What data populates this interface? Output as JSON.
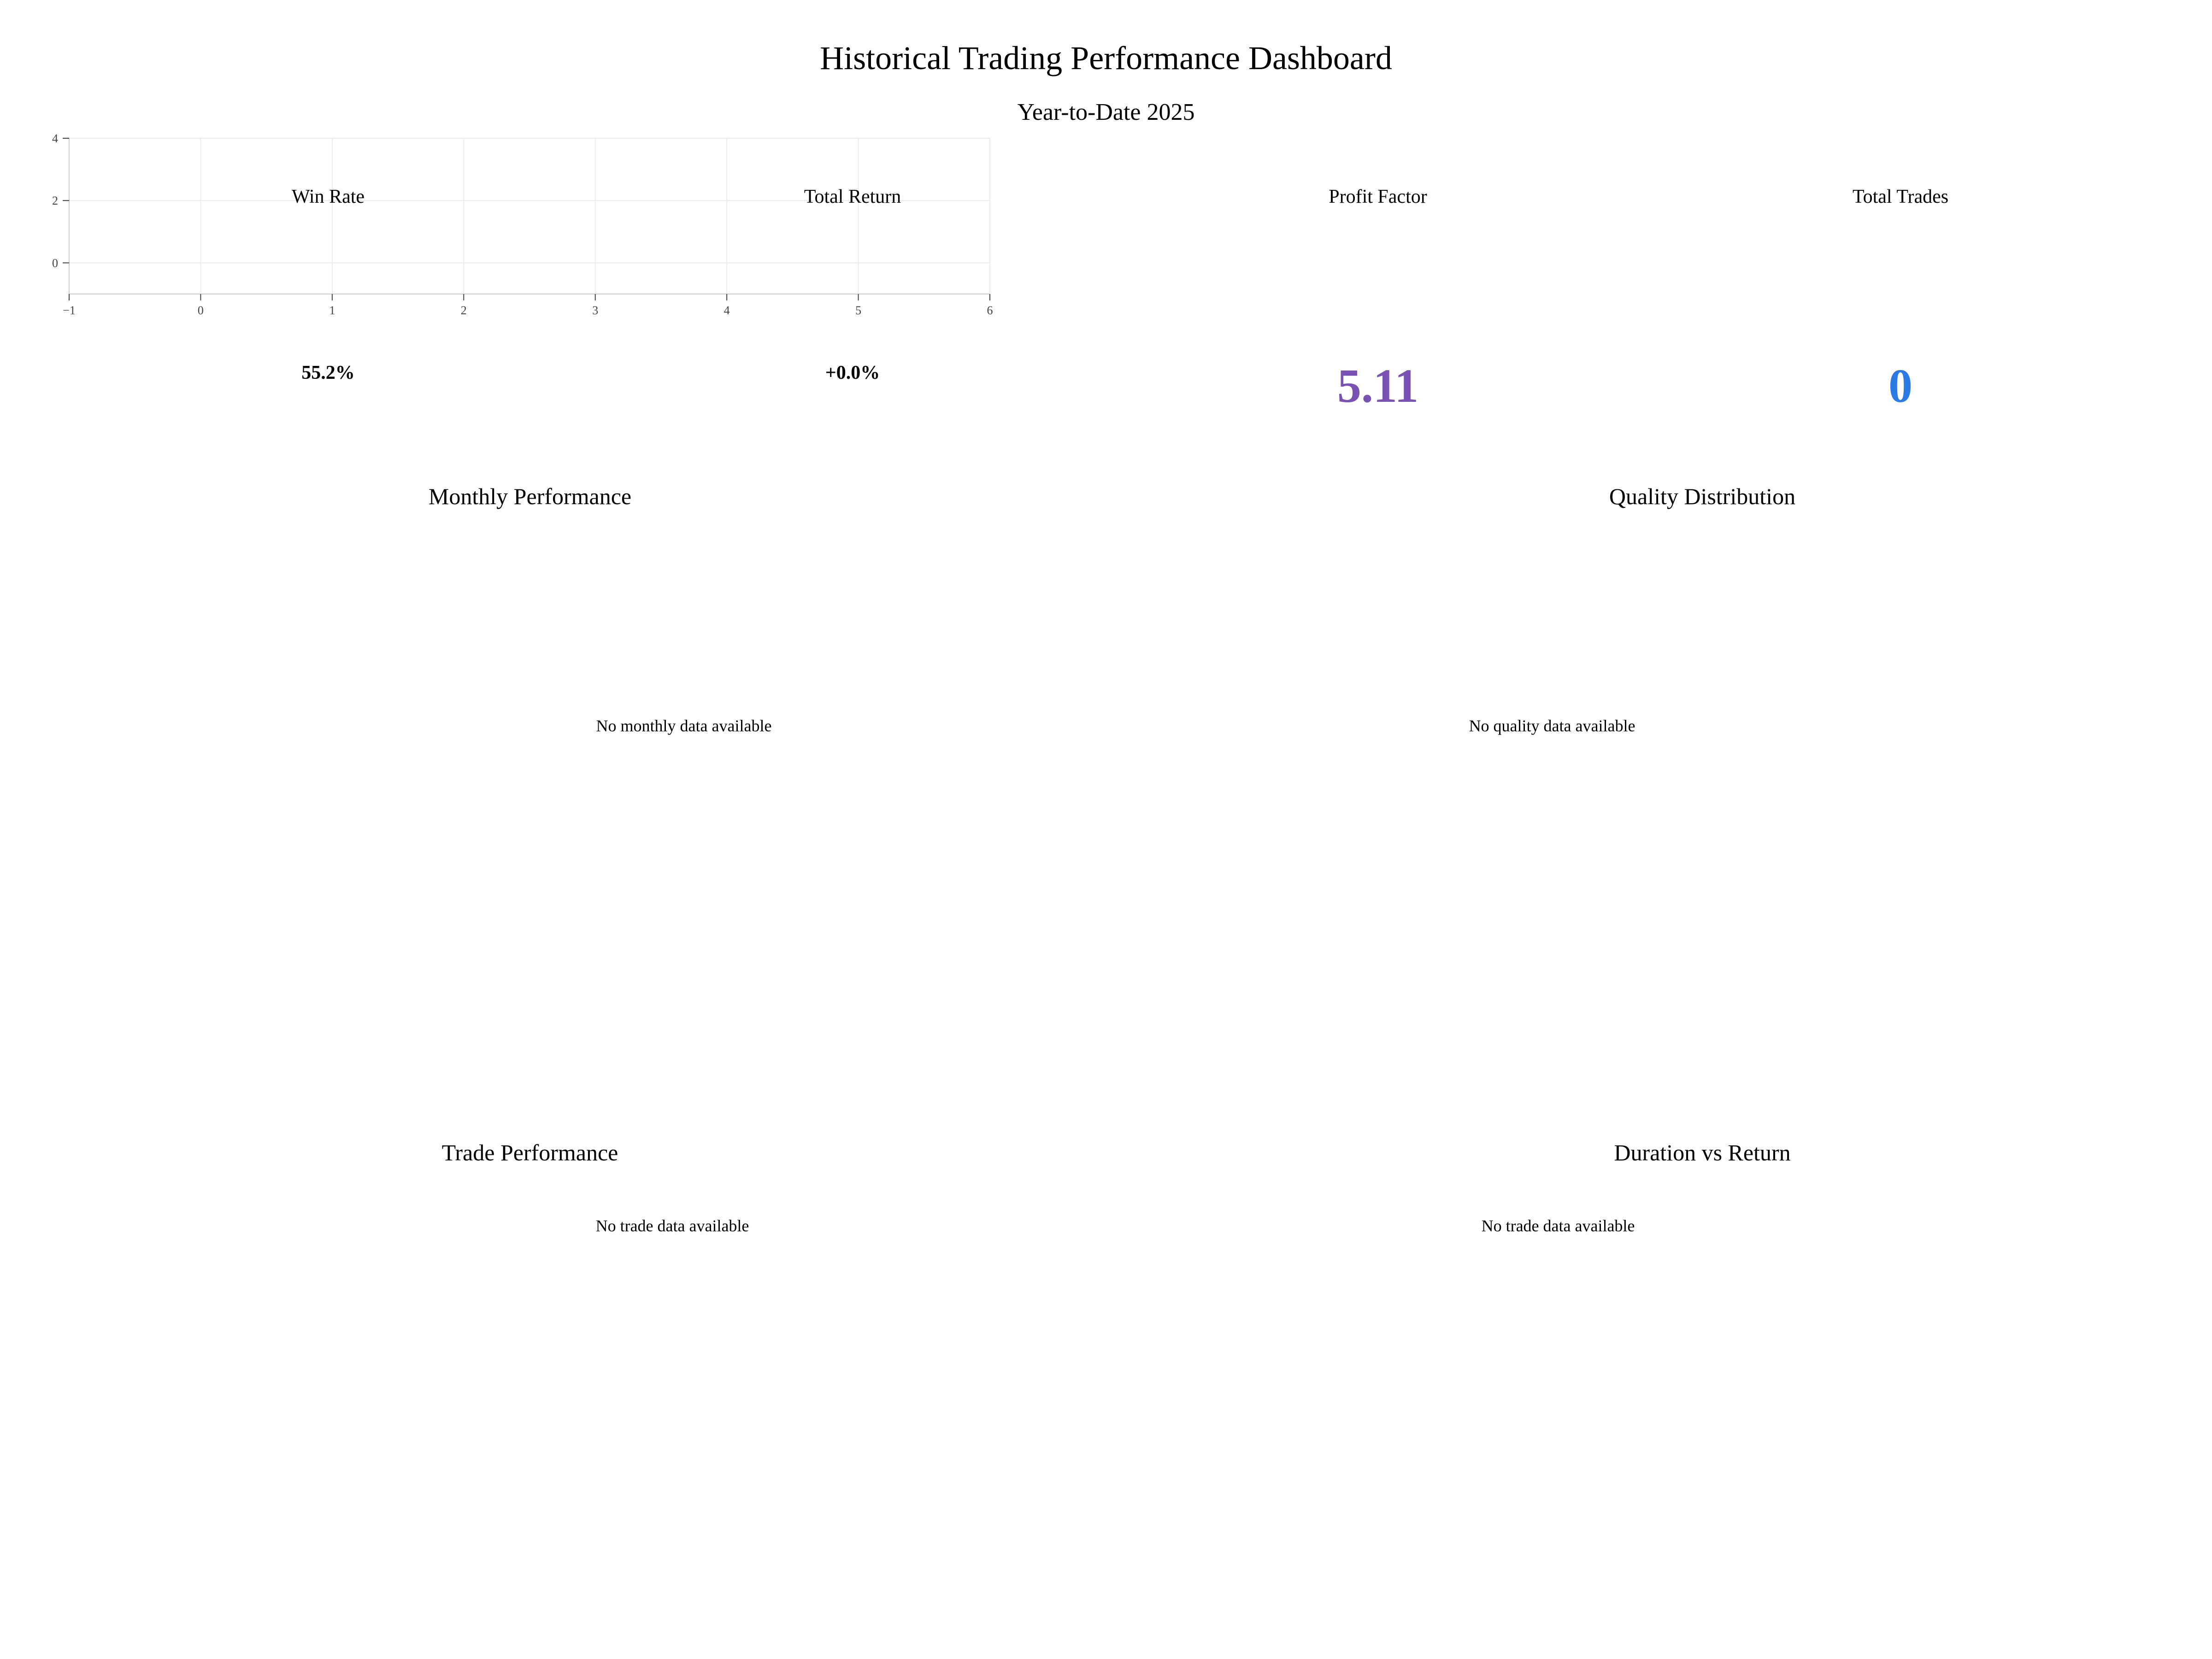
{
  "header": {
    "title": "Historical Trading Performance Dashboard",
    "subtitle": "Year-to-Date 2025"
  },
  "kpis": {
    "win_rate": {
      "label": "Win Rate",
      "value": "55.2%"
    },
    "total_return": {
      "label": "Total Return",
      "value": "+0.0%"
    },
    "profit_factor": {
      "label": "Profit Factor",
      "value": "5.11",
      "color": "#7952b3"
    },
    "total_trades": {
      "label": "Total Trades",
      "value": "0",
      "color": "#2c7be5"
    }
  },
  "panels": {
    "monthly": {
      "title": "Monthly Performance",
      "empty_message": "No monthly data available"
    },
    "quality": {
      "title": "Quality Distribution",
      "empty_message": "No quality data available"
    },
    "trade": {
      "title": "Trade Performance",
      "empty_message": "No trade data available"
    },
    "duration": {
      "title": "Duration vs Return",
      "empty_message": "No trade data available"
    }
  },
  "chart_data": [
    {
      "type": "scatter",
      "title": "",
      "xlabel": "",
      "ylabel": "",
      "series": [],
      "xlim": [
        -1,
        6
      ],
      "ylim": [
        -1,
        4
      ],
      "x_ticks": [
        -1,
        0,
        1,
        2,
        3,
        4,
        5,
        6
      ],
      "x_tick_labels": [
        "−1",
        "0",
        "1",
        "2",
        "3",
        "4",
        "5",
        "6"
      ],
      "y_ticks": [
        0,
        2,
        4
      ],
      "y_tick_labels": [
        "0",
        "2",
        "4"
      ],
      "grid": true
    }
  ]
}
